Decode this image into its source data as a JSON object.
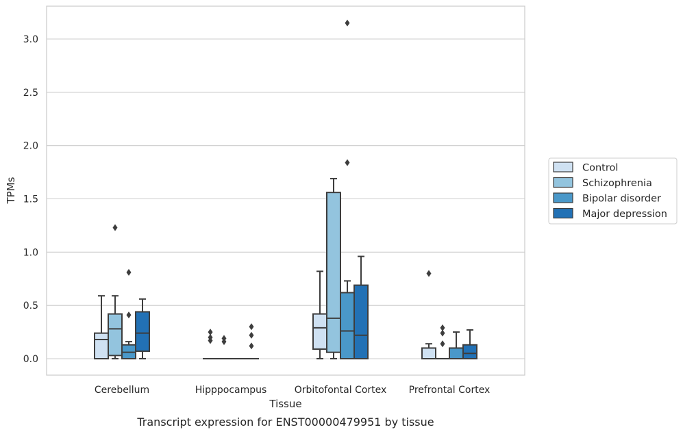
{
  "chart_data": {
    "type": "boxplot",
    "title": "",
    "caption": "Transcript expression for ENST00000479951 by tissue",
    "xlabel": "Tissue",
    "ylabel": "TPMs",
    "ylim": [
      -0.15,
      3.3
    ],
    "yticks": [
      "0.0",
      "0.5",
      "1.0",
      "1.5",
      "2.0",
      "2.5",
      "3.0"
    ],
    "grid": true,
    "legend_position": "right",
    "categories": [
      "Cerebellum",
      "Hipppocampus",
      "Orbitofontal Cortex",
      "Prefrontal Cortex"
    ],
    "series": [
      {
        "name": "Control",
        "color": "#cfe1f2",
        "boxes": [
          {
            "whisker_low": 0.0,
            "q1": 0.0,
            "median": 0.18,
            "q3": 0.24,
            "whisker_high": 0.59,
            "outliers": []
          },
          {
            "whisker_low": 0.0,
            "q1": 0.0,
            "median": 0.0,
            "q3": 0.0,
            "whisker_high": 0.0,
            "outliers": [
              0.17,
              0.2,
              0.25
            ]
          },
          {
            "whisker_low": 0.0,
            "q1": 0.09,
            "median": 0.29,
            "q3": 0.42,
            "whisker_high": 0.82,
            "outliers": []
          },
          {
            "whisker_low": 0.0,
            "q1": 0.0,
            "median": 0.0,
            "q3": 0.1,
            "whisker_high": 0.14,
            "outliers": [
              0.8
            ]
          }
        ]
      },
      {
        "name": "Schizophrenia",
        "color": "#93c4de",
        "boxes": [
          {
            "whisker_low": 0.0,
            "q1": 0.03,
            "median": 0.28,
            "q3": 0.42,
            "whisker_high": 0.59,
            "outliers": [
              1.23
            ]
          },
          {
            "whisker_low": 0.0,
            "q1": 0.0,
            "median": 0.0,
            "q3": 0.0,
            "whisker_high": 0.0,
            "outliers": [
              0.16,
              0.19
            ]
          },
          {
            "whisker_low": 0.0,
            "q1": 0.06,
            "median": 0.38,
            "q3": 1.56,
            "whisker_high": 1.69,
            "outliers": []
          },
          {
            "whisker_low": 0.0,
            "q1": 0.0,
            "median": 0.0,
            "q3": 0.0,
            "whisker_high": 0.0,
            "outliers": [
              0.14,
              0.24,
              0.29
            ]
          }
        ]
      },
      {
        "name": "Bipolar disorder",
        "color": "#4a98c9",
        "boxes": [
          {
            "whisker_low": 0.0,
            "q1": 0.0,
            "median": 0.06,
            "q3": 0.13,
            "whisker_high": 0.16,
            "outliers": [
              0.41,
              0.81
            ]
          },
          {
            "whisker_low": 0.0,
            "q1": 0.0,
            "median": 0.0,
            "q3": 0.0,
            "whisker_high": 0.0,
            "outliers": []
          },
          {
            "whisker_low": 0.0,
            "q1": 0.0,
            "median": 0.26,
            "q3": 0.62,
            "whisker_high": 0.73,
            "outliers": [
              1.84,
              3.15
            ]
          },
          {
            "whisker_low": 0.0,
            "q1": 0.0,
            "median": 0.0,
            "q3": 0.1,
            "whisker_high": 0.25,
            "outliers": []
          }
        ]
      },
      {
        "name": "Major depression",
        "color": "#2271b5",
        "boxes": [
          {
            "whisker_low": 0.0,
            "q1": 0.07,
            "median": 0.24,
            "q3": 0.44,
            "whisker_high": 0.56,
            "outliers": []
          },
          {
            "whisker_low": 0.0,
            "q1": 0.0,
            "median": 0.0,
            "q3": 0.0,
            "whisker_high": 0.0,
            "outliers": [
              0.12,
              0.22,
              0.3
            ]
          },
          {
            "whisker_low": 0.0,
            "q1": 0.0,
            "median": 0.22,
            "q3": 0.69,
            "whisker_high": 0.96,
            "outliers": []
          },
          {
            "whisker_low": 0.0,
            "q1": 0.0,
            "median": 0.05,
            "q3": 0.13,
            "whisker_high": 0.27,
            "outliers": []
          }
        ]
      }
    ]
  }
}
